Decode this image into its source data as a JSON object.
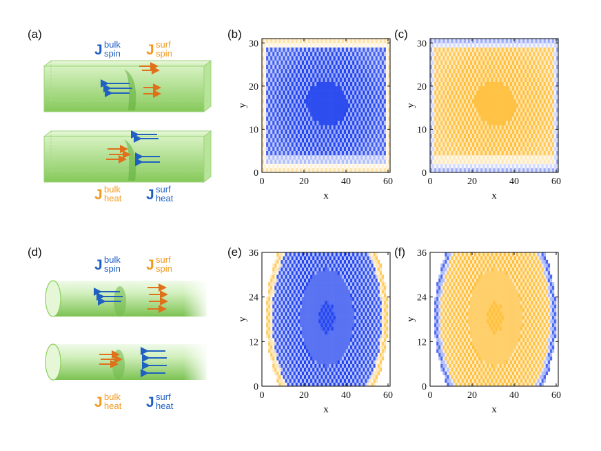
{
  "panels": {
    "a": "(a)",
    "b": "(b)",
    "c": "(c)",
    "d": "(d)",
    "e": "(e)",
    "f": "(f)"
  },
  "labels": {
    "J": "J",
    "bulk": "bulk",
    "surf": "surf",
    "spin": "spin",
    "heat": "heat"
  },
  "colors": {
    "blue": "#1f5fc4",
    "orange": "#f29a1f",
    "arrow_blue": "#2060c0",
    "arrow_orange": "#e0701a",
    "green_light": "#dff4c8",
    "green_dark": "#8ccf5e",
    "map_blue": "#2244ee",
    "map_orange": "#ffbf3a"
  },
  "chart_data": [
    {
      "id": "b",
      "type": "heatmap",
      "shape": "rectangle",
      "field": "spin",
      "bulk_sign": "blue",
      "surface_sign": "orange",
      "xlabel": "x",
      "ylabel": "y",
      "xlim": [
        0,
        61
      ],
      "ylim": [
        0,
        31
      ],
      "xticks": [
        "0",
        "20",
        "40",
        "60"
      ],
      "xtick_values": [
        0,
        20,
        40,
        60
      ],
      "yticks": [
        "0",
        "10",
        "20",
        "30"
      ],
      "ytick_values": [
        0,
        10,
        20,
        30
      ]
    },
    {
      "id": "c",
      "type": "heatmap",
      "shape": "rectangle",
      "field": "heat",
      "bulk_sign": "orange",
      "surface_sign": "blue",
      "xlabel": "x",
      "ylabel": "y",
      "xlim": [
        0,
        61
      ],
      "ylim": [
        0,
        31
      ],
      "xticks": [
        "0",
        "20",
        "40",
        "60"
      ],
      "xtick_values": [
        0,
        20,
        40,
        60
      ],
      "yticks": [
        "0",
        "10",
        "20",
        "30"
      ],
      "ytick_values": [
        0,
        10,
        20,
        30
      ]
    },
    {
      "id": "e",
      "type": "heatmap",
      "shape": "disk",
      "field": "spin",
      "bulk_sign": "blue",
      "surface_sign": "orange",
      "xlabel": "x",
      "ylabel": "y",
      "xlim": [
        0,
        61
      ],
      "ylim": [
        0,
        36
      ],
      "xticks": [
        "0",
        "20",
        "40",
        "60"
      ],
      "xtick_values": [
        0,
        20,
        40,
        60
      ],
      "yticks": [
        "0",
        "12",
        "24",
        "36"
      ],
      "ytick_values": [
        0,
        12,
        24,
        36
      ]
    },
    {
      "id": "f",
      "type": "heatmap",
      "shape": "disk",
      "field": "heat",
      "bulk_sign": "orange",
      "surface_sign": "blue",
      "xlabel": "x",
      "ylabel": "y",
      "xlim": [
        0,
        61
      ],
      "ylim": [
        0,
        36
      ],
      "xticks": [
        "0",
        "20",
        "40",
        "60"
      ],
      "xtick_values": [
        0,
        20,
        40,
        60
      ],
      "yticks": [
        "0",
        "12",
        "24",
        "36"
      ],
      "ytick_values": [
        0,
        12,
        24,
        36
      ]
    }
  ]
}
